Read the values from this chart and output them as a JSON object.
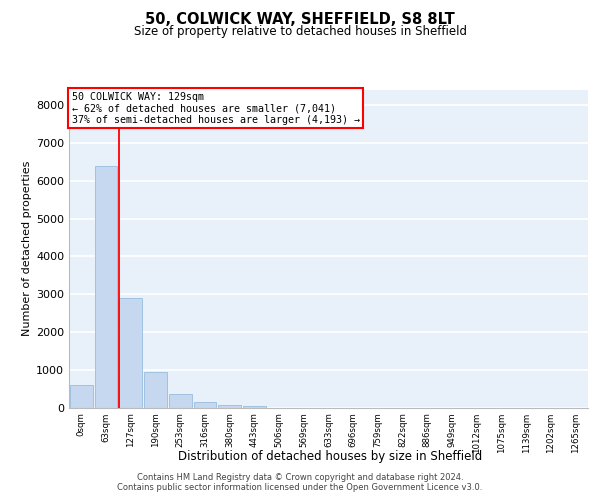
{
  "title": "50, COLWICK WAY, SHEFFIELD, S8 8LT",
  "subtitle": "Size of property relative to detached houses in Sheffield",
  "xlabel": "Distribution of detached houses by size in Sheffield",
  "ylabel": "Number of detached properties",
  "bar_color": "#c5d8f0",
  "bar_edge_color": "#8ab4d8",
  "background_color": "#e8f0fa",
  "grid_color": "#ffffff",
  "categories": [
    "0sqm",
    "63sqm",
    "127sqm",
    "190sqm",
    "253sqm",
    "316sqm",
    "380sqm",
    "443sqm",
    "506sqm",
    "569sqm",
    "633sqm",
    "696sqm",
    "759sqm",
    "822sqm",
    "886sqm",
    "949sqm",
    "1012sqm",
    "1075sqm",
    "1139sqm",
    "1202sqm",
    "1265sqm"
  ],
  "values": [
    600,
    6400,
    2900,
    950,
    370,
    150,
    70,
    50,
    0,
    0,
    0,
    0,
    0,
    0,
    0,
    0,
    0,
    0,
    0,
    0,
    0
  ],
  "property_name": "50 COLWICK WAY: 129sqm",
  "annotation_line1": "← 62% of detached houses are smaller (7,041)",
  "annotation_line2": "37% of semi-detached houses are larger (4,193) →",
  "vline_x_index": 1.52,
  "ylim": [
    0,
    8400
  ],
  "yticks": [
    0,
    1000,
    2000,
    3000,
    4000,
    5000,
    6000,
    7000,
    8000
  ],
  "footer_line1": "Contains HM Land Registry data © Crown copyright and database right 2024.",
  "footer_line2": "Contains public sector information licensed under the Open Government Licence v3.0."
}
